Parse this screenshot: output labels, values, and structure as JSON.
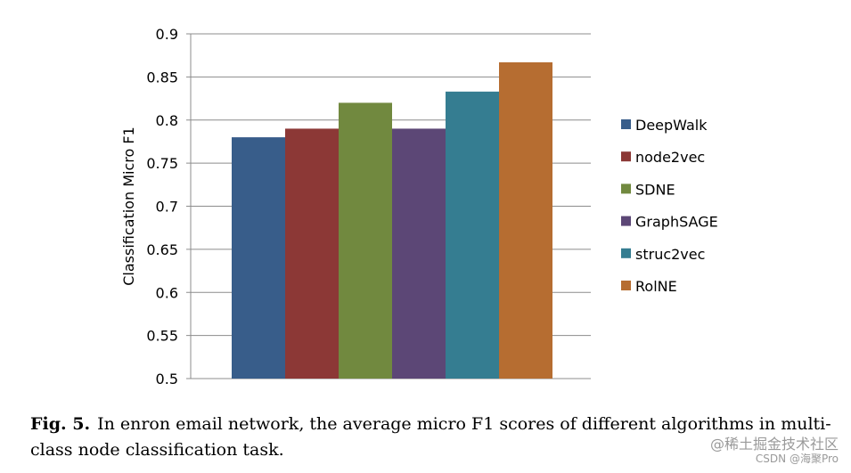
{
  "chart_data": {
    "type": "bar",
    "title": "",
    "xlabel": "",
    "ylabel": "Classification Micro F1",
    "ylim": [
      0.5,
      0.9
    ],
    "yticks": [
      "0.5",
      "0.55",
      "0.6",
      "0.65",
      "0.7",
      "0.75",
      "0.8",
      "0.85",
      "0.9"
    ],
    "grid": true,
    "legend_position": "right",
    "series": [
      {
        "name": "DeepWalk",
        "value": 0.78,
        "color": "#385d8a"
      },
      {
        "name": "node2vec",
        "value": 0.79,
        "color": "#8c3836"
      },
      {
        "name": "SDNE",
        "value": 0.82,
        "color": "#71893f"
      },
      {
        "name": "GraphSAGE",
        "value": 0.79,
        "color": "#5c4776"
      },
      {
        "name": "struc2vec",
        "value": 0.833,
        "color": "#357d91"
      },
      {
        "name": "RolNE",
        "value": 0.867,
        "color": "#b66d31"
      }
    ]
  },
  "caption": {
    "figure_ref": "Fig. 5.",
    "text": "In enron email network, the average micro F1 scores of different algorithms in multi-class node classification task."
  },
  "watermark": {
    "line1": "@稀土掘金技术社区",
    "line2": "CSDN @海聚Pro"
  }
}
